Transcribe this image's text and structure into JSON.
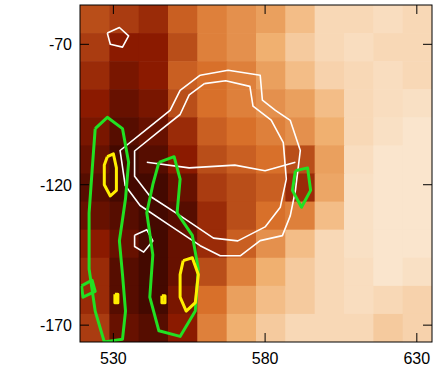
{
  "chart_data": {
    "type": "heatmap",
    "xlim": [
      519,
      635
    ],
    "ylim": [
      -176,
      -56
    ],
    "xticks": [
      530,
      580,
      630
    ],
    "yticks": [
      -70,
      -120,
      -170
    ],
    "cells": [
      [
        0.45,
        0.4,
        0.35,
        0.5,
        0.6,
        0.65,
        0.7,
        0.8,
        0.9,
        0.9,
        0.92,
        0.9
      ],
      [
        0.4,
        0.3,
        0.3,
        0.45,
        0.6,
        0.65,
        0.75,
        0.85,
        0.9,
        0.92,
        0.9,
        0.9
      ],
      [
        0.35,
        0.25,
        0.3,
        0.5,
        0.55,
        0.6,
        0.7,
        0.8,
        0.88,
        0.9,
        0.92,
        0.9
      ],
      [
        0.3,
        0.2,
        0.25,
        0.45,
        0.55,
        0.6,
        0.65,
        0.7,
        0.8,
        0.9,
        0.92,
        0.93
      ],
      [
        0.25,
        0.15,
        0.2,
        0.35,
        0.5,
        0.55,
        0.6,
        0.65,
        0.75,
        0.9,
        0.93,
        0.95
      ],
      [
        0.2,
        0.1,
        0.15,
        0.3,
        0.45,
        0.5,
        0.55,
        0.45,
        0.7,
        0.92,
        0.95,
        0.95
      ],
      [
        0.15,
        0.1,
        0.1,
        0.2,
        0.4,
        0.45,
        0.5,
        0.35,
        0.72,
        0.93,
        0.95,
        0.95
      ],
      [
        0.2,
        0.15,
        0.1,
        0.15,
        0.35,
        0.45,
        0.55,
        0.6,
        0.8,
        0.93,
        0.95,
        0.95
      ],
      [
        0.3,
        0.2,
        0.1,
        0.2,
        0.35,
        0.5,
        0.65,
        0.8,
        0.9,
        0.93,
        0.95,
        0.95
      ],
      [
        0.35,
        0.15,
        0.1,
        0.2,
        0.45,
        0.6,
        0.75,
        0.85,
        0.9,
        0.92,
        0.95,
        0.93
      ],
      [
        0.35,
        0.15,
        0.1,
        0.25,
        0.55,
        0.7,
        0.8,
        0.85,
        0.9,
        0.92,
        0.9,
        0.88
      ],
      [
        0.4,
        0.2,
        0.15,
        0.3,
        0.6,
        0.75,
        0.85,
        0.9,
        0.9,
        0.9,
        0.85,
        0.88
      ]
    ],
    "series": [
      {
        "type": "line",
        "color": "#ffffff",
        "x": [
          558.6,
          567.8,
          578.4,
          579.1,
          583.4,
          588.3,
          591.6,
          590,
          588.3,
          585.7,
          578.4,
          571.8,
          565.2,
          558.6,
          548.7,
          538.8,
          533.9,
          532.2,
          540.5,
          548.7,
          552,
          558.6
        ],
        "values": [
          -81,
          -79.2,
          -81,
          -89.9,
          -93.5,
          -97.1,
          -107.8,
          -122.1,
          -131,
          -138.1,
          -139.9,
          -145.3,
          -145.3,
          -141.7,
          -134.6,
          -127.4,
          -120.3,
          -107.8,
          -100.6,
          -93.5,
          -86.4,
          -81
        ]
      },
      {
        "type": "line",
        "color": "#ffffff",
        "x": [
          560,
          567,
          575,
          576,
          582,
          586,
          587,
          585,
          580,
          571,
          563,
          552,
          542,
          537,
          537,
          545,
          552,
          555,
          560
        ],
        "values": [
          -84,
          -83,
          -85,
          -92,
          -97,
          -105,
          -118,
          -128,
          -135,
          -140,
          -139,
          -131,
          -124,
          -117,
          -108,
          -101,
          -95,
          -88,
          -84
        ]
      },
      {
        "type": "line",
        "color": "#ffffff",
        "x": [
          541,
          555,
          570,
          580,
          590
        ],
        "values": [
          -112,
          -114,
          -113,
          -115,
          -112
        ]
      },
      {
        "type": "line",
        "color": "#ffffff",
        "x": [
          528,
          532,
          535,
          533,
          529,
          528
        ],
        "values": [
          -66,
          -64,
          -67,
          -71,
          -70,
          -66
        ]
      },
      {
        "type": "line",
        "color": "#ffffff",
        "x": [
          537,
          541,
          543,
          540,
          537,
          537
        ],
        "values": [
          -138,
          -136,
          -140,
          -144,
          -142,
          -138
        ]
      },
      {
        "type": "line",
        "color": "#22e022",
        "x": [
          524,
          528,
          533,
          535,
          534,
          532,
          533,
          534,
          533,
          527,
          524,
          522,
          522,
          523,
          524
        ],
        "values": [
          -100,
          -96,
          -100,
          -112,
          -125,
          -140,
          -152,
          -165,
          -175,
          -176,
          -165,
          -150,
          -130,
          -115,
          -100
        ]
      },
      {
        "type": "line",
        "color": "#22e022",
        "x": [
          545,
          550,
          552,
          551,
          556,
          558,
          557,
          552,
          545,
          542,
          543,
          541,
          543,
          545
        ],
        "values": [
          -112,
          -110,
          -118,
          -130,
          -138,
          -150,
          -165,
          -174,
          -172,
          -160,
          -145,
          -130,
          -120,
          -112
        ]
      },
      {
        "type": "line",
        "color": "#22e022",
        "x": [
          590,
          594,
          595,
          592,
          589,
          590
        ],
        "values": [
          -115,
          -114,
          -122,
          -128,
          -122,
          -115
        ]
      },
      {
        "type": "line",
        "color": "#22e022",
        "x": [
          519.5,
          523,
          524,
          520,
          519.5
        ],
        "values": [
          -156,
          -154,
          -158,
          -160,
          -156
        ]
      },
      {
        "type": "line",
        "color": "#ffee00",
        "x": [
          528,
          530,
          531,
          531,
          529,
          527,
          527,
          528
        ],
        "values": [
          -110,
          -109,
          -114,
          -122,
          -124,
          -120,
          -113,
          -110
        ]
      },
      {
        "type": "line",
        "color": "#ffee00",
        "x": [
          553,
          556,
          558,
          557,
          554,
          552,
          552,
          553
        ],
        "values": [
          -147,
          -146,
          -152,
          -162,
          -165,
          -160,
          -152,
          -147
        ]
      },
      {
        "type": "line",
        "color": "#ffee00",
        "x": [
          530.5,
          531.5,
          531.5,
          530.5,
          530.5
        ],
        "values": [
          -159,
          -159,
          -162,
          -162,
          -159
        ]
      },
      {
        "type": "line",
        "color": "#ffee00",
        "x": [
          546,
          547,
          547,
          546,
          546
        ],
        "values": [
          -159.5,
          -159.5,
          -162,
          -162,
          -159.5
        ]
      }
    ]
  }
}
